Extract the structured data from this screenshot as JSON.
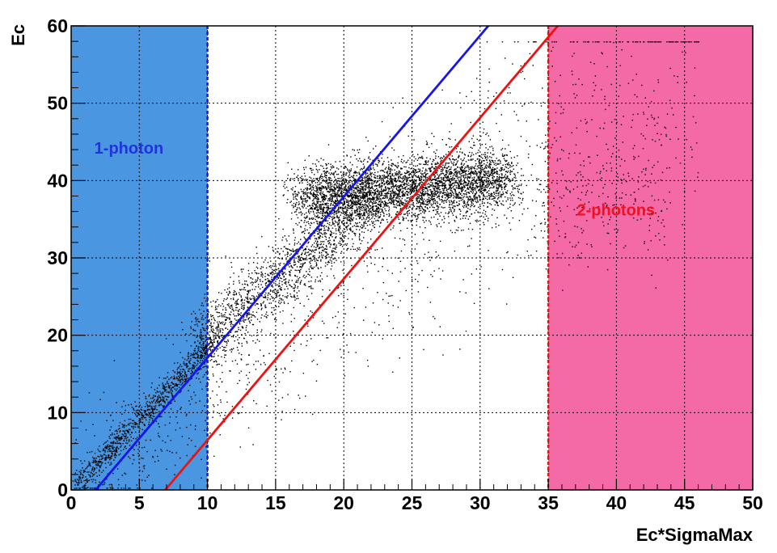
{
  "chart_data": {
    "type": "scatter",
    "xlabel": "Ec*SigmaMax",
    "ylabel": "Ec",
    "xlim": [
      0,
      50
    ],
    "ylim": [
      0,
      60
    ],
    "x_ticks": [
      "0",
      "5",
      "10",
      "15",
      "20",
      "25",
      "30",
      "35",
      "40",
      "45",
      "50"
    ],
    "y_ticks": [
      "0",
      "10",
      "20",
      "30",
      "40",
      "50",
      "60"
    ],
    "grid": true,
    "regions": [
      {
        "label": "1-photon",
        "x_from": 0,
        "x_to": 10,
        "color": "#4a96e0",
        "label_color": "#2233dd",
        "label_pos": [
          1.7,
          43.5
        ],
        "boundary_color": "#1a1aee"
      },
      {
        "label": "2-photons",
        "x_from": 35,
        "x_to": 50,
        "color": "#f46aa6",
        "label_color": "#ee1122",
        "label_pos": [
          37.1,
          35.5
        ],
        "boundary_color": "#ee1111"
      }
    ],
    "lines": [
      {
        "name": "",
        "color": "#1515ee",
        "points": [
          [
            1.8,
            0
          ],
          [
            30.6,
            60
          ]
        ]
      },
      {
        "name": "",
        "color": "#ee1111",
        "points": [
          [
            6.9,
            0
          ],
          [
            35.7,
            60
          ]
        ]
      }
    ],
    "point_color": "#000000"
  }
}
